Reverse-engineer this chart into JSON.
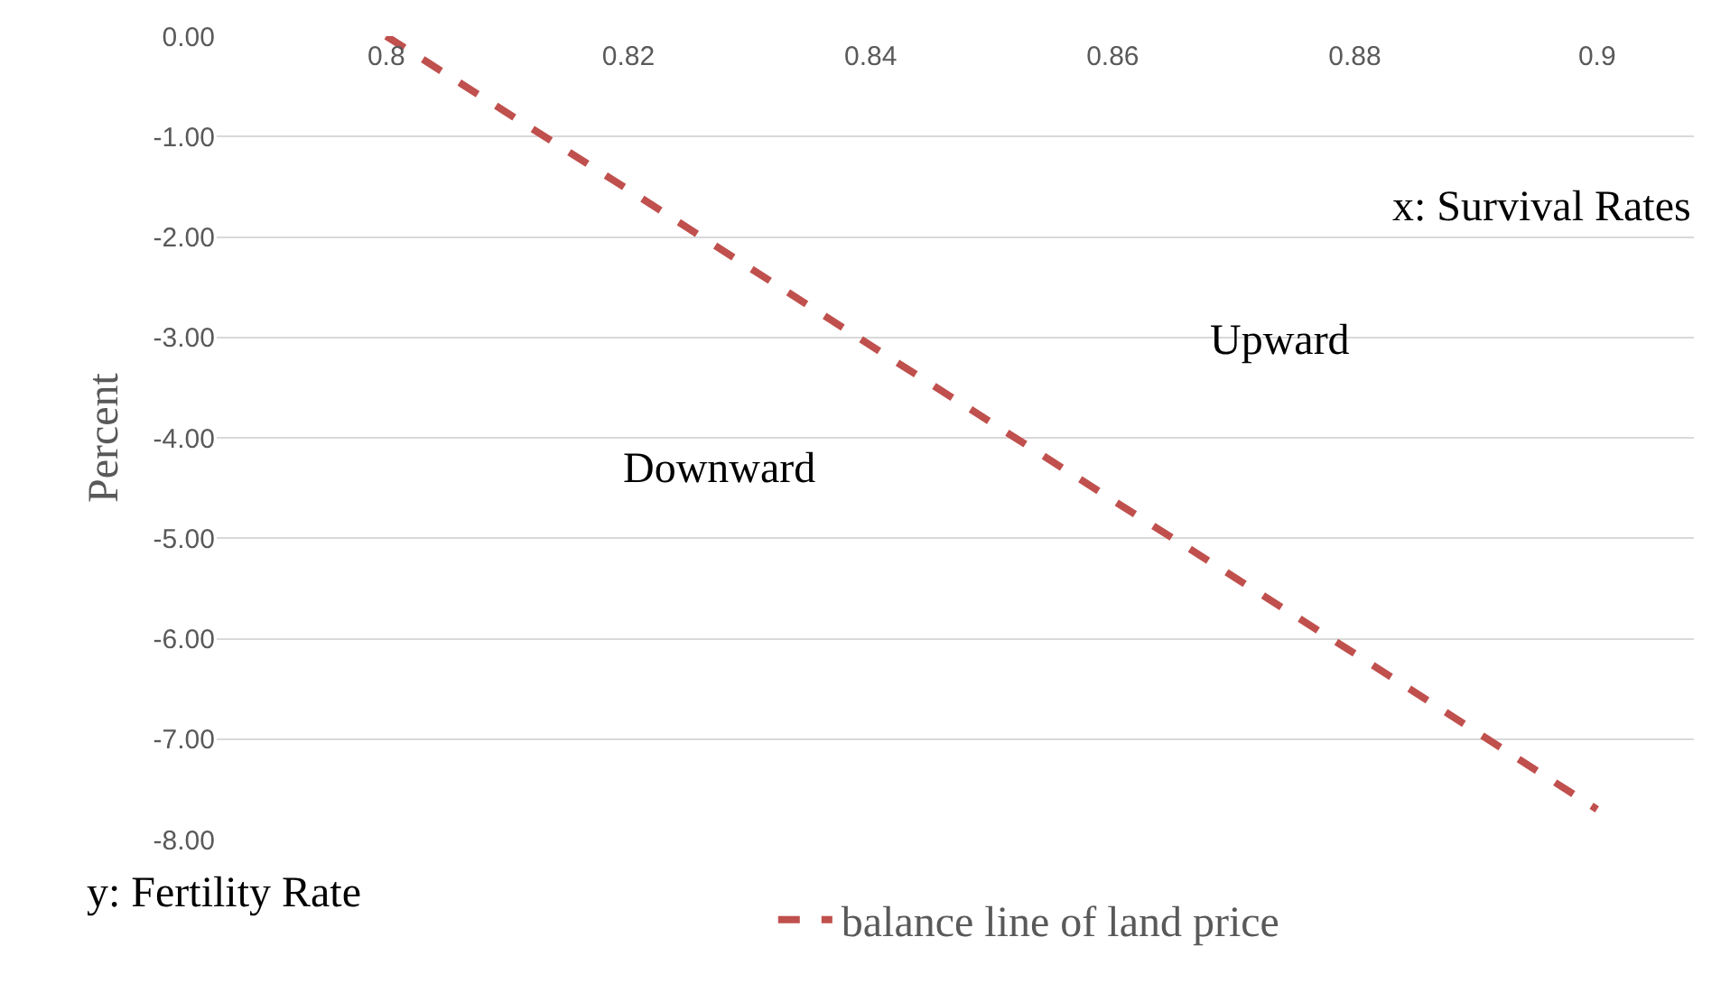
{
  "chart_data": {
    "type": "line",
    "ylabel": "Percent",
    "categories": [
      "0.8",
      "0.82",
      "0.84",
      "0.86",
      "0.88",
      "0.9"
    ],
    "series": [
      {
        "name": "balance line of land price",
        "color": "#c0504d",
        "values": [
          0,
          -1.53,
          -3.08,
          -4.62,
          -6.15,
          -7.7
        ],
        "line_style": "dashed"
      }
    ],
    "ylim": [
      -8,
      0
    ],
    "yticks": [
      {
        "value": 0,
        "label": "0.00"
      },
      {
        "value": -1,
        "label": "-1.00"
      },
      {
        "value": -2,
        "label": "-2.00"
      },
      {
        "value": -3,
        "label": "-3.00"
      },
      {
        "value": -4,
        "label": "-4.00"
      },
      {
        "value": -5,
        "label": "-5.00"
      },
      {
        "value": -6,
        "label": "-6.00"
      },
      {
        "value": -7,
        "label": "-7.00"
      },
      {
        "value": -8,
        "label": "-8.00"
      }
    ],
    "grid": "y",
    "legend": "bottom",
    "marker": "none",
    "annotations": [
      "x: Survival Rates",
      "Upward",
      "Downward",
      "y: Fertility Rate"
    ]
  }
}
